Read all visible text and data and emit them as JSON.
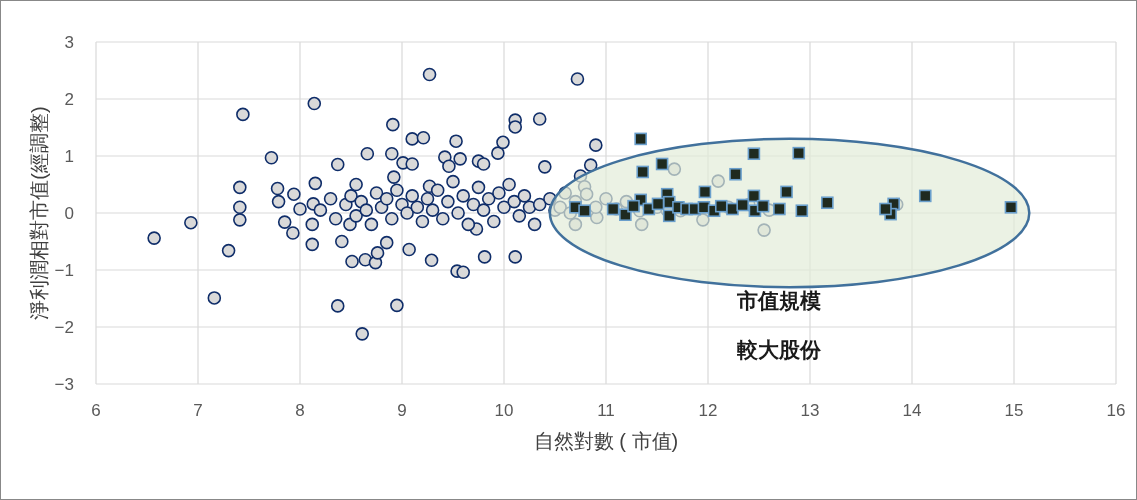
{
  "chart_data": {
    "type": "scatter",
    "xlabel": "自然對數 ( 市值)",
    "ylabel": "淨利潤相對市值(經調整)",
    "xlim": [
      6,
      16
    ],
    "ylim": [
      -3,
      3
    ],
    "xticks": [
      6,
      7,
      8,
      9,
      10,
      11,
      12,
      13,
      14,
      15,
      16
    ],
    "yticks": [
      -3,
      -2,
      -1,
      0,
      1,
      2,
      3
    ],
    "grid": true,
    "annotations": [
      "市值規模",
      "較大股份"
    ],
    "series": [
      {
        "color": "#d9d9d9",
        "marker": "circle",
        "x": [
          6.57,
          6.93,
          7.16,
          7.3,
          7.41,
          7.41,
          7.41,
          7.44,
          7.72,
          7.78,
          7.79,
          7.85,
          7.93,
          7.94,
          8.0,
          8.13,
          8.12,
          8.12,
          8.14,
          8.15,
          8.37,
          8.37,
          8.41,
          8.49,
          8.51,
          8.55,
          8.61,
          8.64,
          8.66,
          8.74,
          8.76,
          8.85,
          8.9,
          8.91,
          8.95,
          9.01,
          9.07,
          9.1,
          9.21,
          9.27,
          9.29,
          9.42,
          9.53,
          9.54,
          9.6,
          9.73,
          9.81,
          9.94,
          9.99,
          10.11,
          10.11,
          10.11,
          10.35,
          10.4,
          10.72,
          10.9,
          9.57,
          9.46,
          9.75,
          9.8,
          9.1,
          8.92,
          9.27,
          8.2,
          8.3,
          8.35,
          8.45,
          8.5,
          8.55,
          8.6,
          8.65,
          8.7,
          8.75,
          8.8,
          8.85,
          8.9,
          8.95,
          9.0,
          9.05,
          9.1,
          9.15,
          9.2,
          9.25,
          9.3,
          9.35,
          9.4,
          9.45,
          9.5,
          9.55,
          9.6,
          9.65,
          9.7,
          9.75,
          9.8,
          9.85,
          9.9,
          9.95,
          10.0,
          10.05,
          10.1,
          10.15,
          10.2,
          10.25,
          10.3,
          10.35,
          10.45,
          10.5,
          10.55,
          10.6,
          10.65,
          10.7,
          10.85,
          10.75,
          10.79,
          10.81,
          11.0,
          11.1,
          11.35,
          11.67,
          12.1,
          11.95,
          12.55,
          11.73,
          11.33,
          10.91,
          10.7,
          10.9,
          11.2,
          11.5,
          11.6,
          12.2,
          12.4,
          12.6,
          13.85
        ],
        "values": [
          -0.44,
          -0.17,
          -1.49,
          -0.66,
          0.45,
          0.1,
          -0.12,
          1.73,
          0.97,
          0.43,
          0.2,
          -0.16,
          -0.35,
          0.33,
          0.07,
          0.16,
          -0.2,
          -0.55,
          1.92,
          0.52,
          -1.63,
          0.85,
          -0.5,
          -0.2,
          -0.85,
          0.5,
          -2.12,
          -0.82,
          1.04,
          -0.87,
          -0.7,
          -0.52,
          1.04,
          1.55,
          -1.62,
          0.88,
          -0.64,
          1.3,
          1.32,
          2.43,
          -0.83,
          0.98,
          1.26,
          -1.02,
          -1.04,
          -0.28,
          -0.77,
          1.05,
          1.24,
          1.63,
          1.51,
          -0.77,
          1.65,
          0.81,
          2.35,
          1.19,
          0.95,
          0.82,
          0.91,
          0.86,
          0.86,
          0.63,
          0.47,
          0.05,
          0.25,
          -0.1,
          0.15,
          0.3,
          -0.05,
          0.2,
          0.05,
          -0.2,
          0.35,
          0.1,
          0.25,
          -0.1,
          0.4,
          0.15,
          0.0,
          0.3,
          0.1,
          -0.15,
          0.25,
          0.05,
          0.4,
          -0.1,
          0.2,
          0.55,
          0.0,
          0.3,
          -0.2,
          0.15,
          0.45,
          0.05,
          0.25,
          -0.15,
          0.35,
          0.1,
          0.5,
          0.2,
          -0.05,
          0.3,
          0.1,
          -0.2,
          0.15,
          0.25,
          0.05,
          0.1,
          0.35,
          0.0,
          -0.2,
          0.84,
          0.65,
          0.46,
          0.33,
          0.25,
          0.07,
          -0.2,
          0.77,
          0.56,
          -0.12,
          -0.3,
          0.04,
          0.04,
          -0.08,
          0.2,
          0.1,
          0.2,
          0.1,
          0.05,
          0.1,
          0.15,
          0.05,
          0.15
        ]
      },
      {
        "color": "#1f2a1f",
        "marker": "square",
        "x": [
          11.34,
          12.45,
          12.89,
          11.55,
          11.36,
          12.27,
          11.97,
          12.77,
          11.6,
          12.45,
          11.34,
          11.62,
          13.17,
          11.07,
          11.19,
          11.42,
          11.62,
          11.71,
          11.79,
          11.87,
          11.96,
          12.06,
          12.13,
          12.24,
          12.34,
          12.46,
          12.54,
          12.7,
          12.92,
          11.51,
          11.27,
          14.13,
          13.82,
          13.79,
          13.74,
          14.97,
          10.7,
          10.79
        ],
        "values": [
          1.3,
          1.04,
          1.05,
          0.86,
          0.72,
          0.68,
          0.37,
          0.37,
          0.33,
          0.3,
          0.23,
          0.19,
          0.18,
          0.07,
          -0.03,
          0.07,
          -0.05,
          0.1,
          0.07,
          0.07,
          0.1,
          0.04,
          0.12,
          0.07,
          0.14,
          0.04,
          0.12,
          0.07,
          0.04,
          0.16,
          0.12,
          0.3,
          0.16,
          -0.02,
          0.07,
          0.1,
          0.1,
          0.04
        ]
      }
    ]
  }
}
